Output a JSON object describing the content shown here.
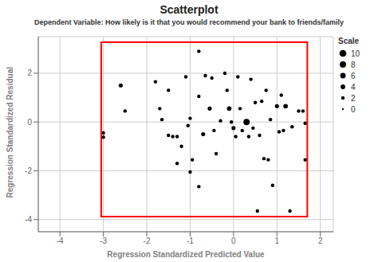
{
  "chart_data": {
    "type": "scatter",
    "title": "Scatterplot",
    "subtitle": "Dependent Variable: How likely is it that you would recommend your bank to friends/family",
    "xlabel": "Regression Standardized Predicted Value",
    "ylabel": "Regression Standardized Residual",
    "xlim": [
      -4.5,
      2.3
    ],
    "ylim": [
      -4.5,
      3.5
    ],
    "xticks": [
      -4,
      -3,
      -2,
      -1,
      0,
      1,
      2
    ],
    "yticks": [
      -4,
      -2,
      0,
      2
    ],
    "grid": true,
    "legend": "right",
    "x": [
      -3.0,
      -3.0,
      -2.6,
      -2.5,
      -1.8,
      -1.7,
      -1.65,
      -1.5,
      -1.5,
      -1.4,
      -1.3,
      -1.3,
      -1.2,
      -1.1,
      -1.05,
      -1.0,
      -1.0,
      -0.95,
      -0.8,
      -0.8,
      -0.7,
      -0.65,
      -0.55,
      -0.5,
      -0.45,
      -0.4,
      -0.3,
      -0.2,
      -0.15,
      -0.1,
      -0.05,
      0.0,
      0.05,
      0.1,
      0.15,
      0.2,
      0.3,
      0.35,
      0.4,
      0.45,
      0.5,
      0.55,
      0.6,
      0.65,
      0.7,
      0.75,
      0.8,
      0.85,
      0.9,
      1.0,
      1.05,
      1.1,
      1.15,
      1.2,
      1.3,
      1.35,
      1.5,
      1.6,
      1.65,
      1.65,
      -0.8
    ],
    "values": [
      -0.45,
      -0.62,
      1.5,
      0.45,
      1.65,
      0.55,
      0.1,
      1.3,
      -0.55,
      -0.6,
      -0.6,
      -1.7,
      -1.0,
      1.85,
      -0.15,
      -2.05,
      0.15,
      -1.55,
      -2.65,
      1.05,
      -0.5,
      1.9,
      0.55,
      1.8,
      -0.35,
      -1.3,
      0.05,
      2.0,
      1.3,
      0.55,
      0.0,
      -0.25,
      -0.6,
      1.85,
      0.55,
      -0.35,
      0.0,
      -0.6,
      1.75,
      -0.25,
      0.8,
      -3.65,
      -0.55,
      0.85,
      -1.5,
      1.3,
      -1.55,
      0.1,
      -2.6,
      0.65,
      -0.4,
      1.1,
      -0.35,
      0.65,
      -3.65,
      -0.2,
      0.45,
      0.45,
      -1.55,
      -0.05,
      2.9
    ],
    "sizes": [
      2,
      2,
      3,
      2,
      2,
      2,
      2,
      2,
      2,
      2,
      2,
      2,
      2,
      2,
      2,
      2,
      2,
      2,
      2,
      2,
      3,
      2,
      3,
      2,
      2,
      2,
      2,
      2,
      2,
      4,
      2,
      3,
      2,
      2,
      2,
      2,
      8,
      2,
      2,
      2,
      2,
      2,
      2,
      2,
      2,
      2,
      2,
      2,
      2,
      3,
      2,
      2,
      2,
      4,
      2,
      2,
      2,
      2,
      2,
      2,
      2
    ],
    "color": "#000000",
    "size_legend": {
      "title": "Scale",
      "values": [
        10,
        8,
        6,
        4,
        2,
        0
      ]
    },
    "annotations": [
      {
        "type": "rect",
        "x": -3.05,
        "y": -3.88,
        "width": 4.75,
        "height": 7.15,
        "color": "red"
      }
    ]
  }
}
